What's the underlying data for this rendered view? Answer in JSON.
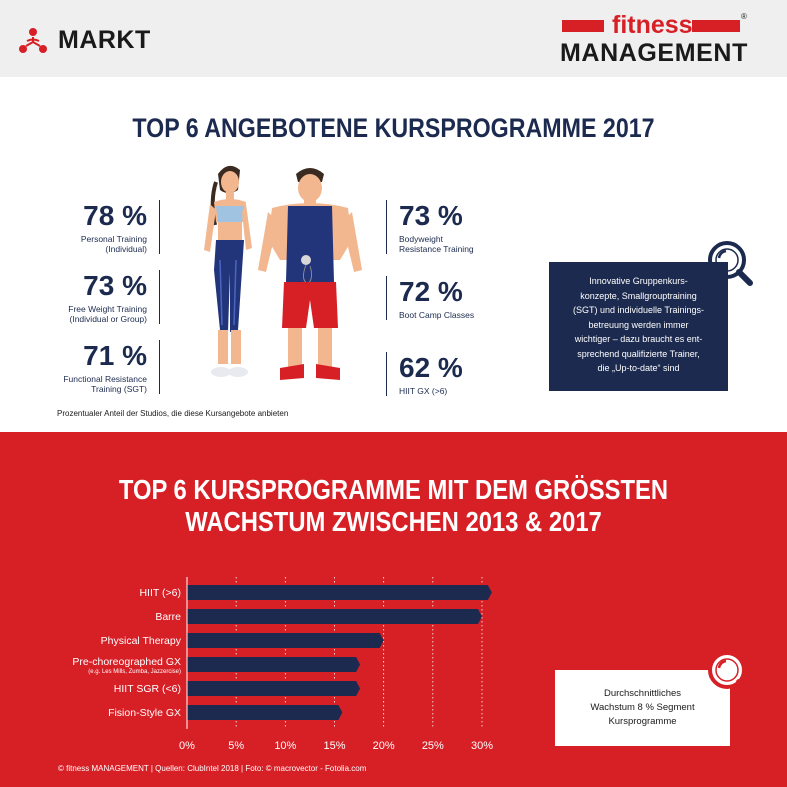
{
  "header": {
    "section_label": "MARKT",
    "section_icon": "people-network-icon",
    "logo_fitness": "fitness",
    "logo_management": "MANAGEMENT",
    "logo_registered": "®"
  },
  "top_section": {
    "title": "TOP 6 ANGEBOTENE KURSPROGRAMME 2017",
    "stats_left": [
      {
        "pct": "78 %",
        "desc": "Personal Training\n(Individual)"
      },
      {
        "pct": "73 %",
        "desc": "Free Weight Training\n(Individual or Group)"
      },
      {
        "pct": "71 %",
        "desc": "Functional Resistance\nTraining (SGT)"
      }
    ],
    "stats_right": [
      {
        "pct": "73 %",
        "desc": "Bodyweight\nResistance Training"
      },
      {
        "pct": "72 %",
        "desc": "Boot Camp Classes"
      },
      {
        "pct": "62 %",
        "desc": "HIIT GX (>6)"
      }
    ],
    "note": "Prozentualer Anteil der Studios, die diese Kursangebote anbieten",
    "info_text": "Innovative Gruppenkurs-\nkonzepte, Smallgrouptraining\n(SGT) und individuelle Trainings-\nbetreuung werden immer\nwichtiger – dazu braucht es ent-\nsprechend qualifizierte Trainer,\ndie „Up-to-date“ sind"
  },
  "bottom_section": {
    "title": "TOP 6 KURSPROGRAMME MIT DEM GRÖSSTEN\nWACHSTUM ZWISCHEN 2013 & 2017",
    "growth_text": "Durchschnittliches\nWachstum 8 % Segment\nKursprogramme"
  },
  "chart_data": {
    "type": "bar",
    "orientation": "horizontal",
    "categories": [
      "HIIT (>6)",
      "Barre",
      "Physical Therapy",
      "Pre-choreographed GX",
      "HIIT SGR (<6)",
      "Fision-Style GX"
    ],
    "category_sublabels": [
      "",
      "",
      "",
      "(e.g. Les Mills, Zumba, Jazzercise)",
      "",
      ""
    ],
    "values": [
      31,
      30,
      20,
      17.6,
      17.6,
      15.8
    ],
    "ticks": [
      "0%",
      "5%",
      "10%",
      "15%",
      "20%",
      "25%",
      "30%"
    ],
    "xlim": [
      0,
      30
    ],
    "grid": true,
    "bar_color": "#1b2a4e"
  },
  "footer": {
    "text": "© fitness MANAGEMENT   |   Quellen: ClubIntel 2018   |   Foto: © macrovector - Fotolia.com"
  },
  "colors": {
    "brand_red": "#d71f26",
    "navy": "#1b2a4e",
    "header_bg": "#f0efef"
  }
}
